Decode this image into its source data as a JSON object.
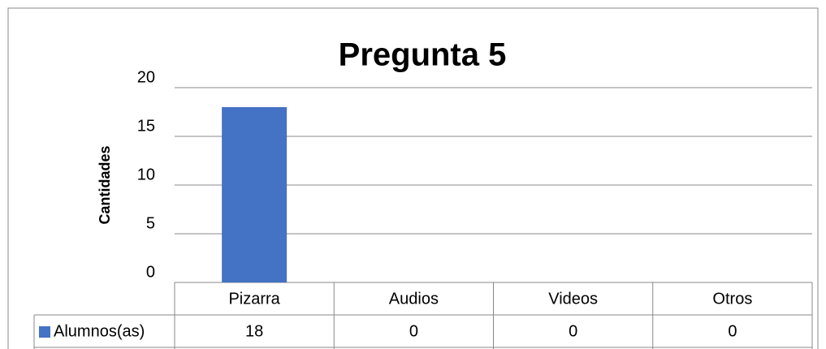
{
  "chart_data": {
    "type": "bar",
    "title": "Pregunta 5",
    "y_label": "Cantidades",
    "categories": [
      "Pizarra",
      "Audios",
      "Videos",
      "Otros"
    ],
    "series": [
      {
        "name": "Alumnos(as)",
        "color": "#4472c4",
        "values": [
          18,
          0,
          0,
          0
        ]
      }
    ],
    "ylim": [
      0,
      20
    ],
    "yticks": [
      0,
      5,
      10,
      15,
      20
    ],
    "grid": true,
    "data_table": true
  }
}
